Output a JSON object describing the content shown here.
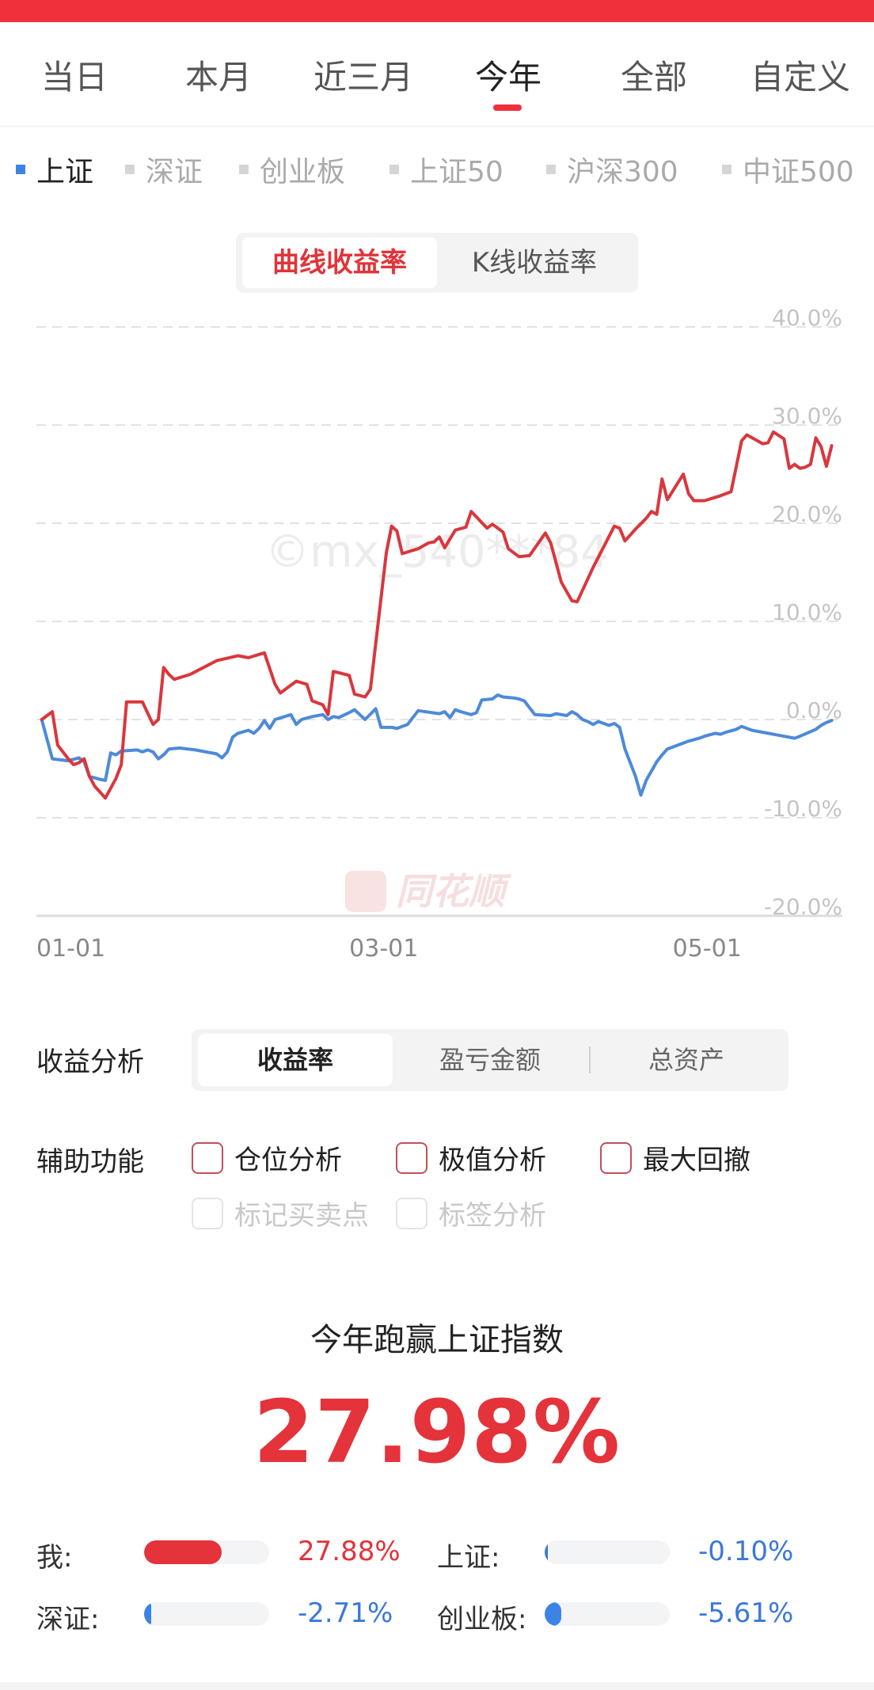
{
  "period_tabs": [
    "当日",
    "本月",
    "近三月",
    "今年",
    "全部",
    "自定义"
  ],
  "active_period": 3,
  "index_tabs": [
    "上证",
    "深证",
    "创业板",
    "上证50",
    "沪深300",
    "中证500"
  ],
  "active_index": 0,
  "chart_toggle": {
    "options": [
      "曲线收益率",
      "K线收益率"
    ],
    "active": 0
  },
  "chart_data": {
    "type": "line",
    "y_ticks": [
      "40.0%",
      "30.0%",
      "20.0%",
      "10.0%",
      "0.0%",
      "-10.0%",
      "-20.0%"
    ],
    "ylim": [
      -20,
      40
    ],
    "x_ticks": [
      {
        "label": "01-01",
        "day": 0
      },
      {
        "label": "03-01",
        "day": 59
      },
      {
        "label": "05-01",
        "day": 120
      }
    ],
    "xlim": [
      0,
      152
    ],
    "grid": true,
    "watermark": "©mx_540***84",
    "brand": "同花顺",
    "colors": {
      "mine": "#d9373d",
      "index": "#4d8ad9"
    },
    "series": [
      {
        "values": [
          [
            1,
            0
          ],
          [
            3,
            0.8
          ],
          [
            4,
            -2.6
          ],
          [
            6,
            -4
          ],
          [
            7,
            -4.6
          ],
          [
            8,
            -4.4
          ],
          [
            9,
            -4
          ],
          [
            10,
            -5.8
          ],
          [
            11,
            -6.8
          ],
          [
            13,
            -8
          ],
          [
            15,
            -6
          ],
          [
            16,
            -4.6
          ],
          [
            17,
            1.8
          ],
          [
            20,
            1.8
          ],
          [
            22,
            -0.5
          ],
          [
            23,
            0
          ],
          [
            24,
            5.3
          ],
          [
            25,
            4.6
          ],
          [
            26,
            4.1
          ],
          [
            29,
            4.6
          ],
          [
            34,
            6
          ],
          [
            38,
            6.5
          ],
          [
            40,
            6.3
          ],
          [
            43,
            6.8
          ],
          [
            45,
            3.6
          ],
          [
            46,
            2.7
          ],
          [
            49,
            3.9
          ],
          [
            51,
            3.6
          ],
          [
            52,
            1.9
          ],
          [
            54,
            1.5
          ],
          [
            55,
            0.5
          ],
          [
            56,
            4.9
          ],
          [
            59,
            4.5
          ],
          [
            60,
            2.6
          ],
          [
            62,
            2.3
          ],
          [
            63,
            3.1
          ],
          [
            66,
            17
          ],
          [
            67,
            19.7
          ],
          [
            68,
            19.2
          ],
          [
            69,
            16.9
          ],
          [
            72,
            17.4
          ],
          [
            74,
            18
          ],
          [
            75,
            18.1
          ],
          [
            76,
            18.6
          ],
          [
            77,
            17.5
          ],
          [
            79,
            19.3
          ],
          [
            81,
            19.6
          ],
          [
            82,
            21.2
          ],
          [
            85,
            19.5
          ],
          [
            86,
            19.9
          ],
          [
            88,
            19.1
          ],
          [
            89,
            17.4
          ],
          [
            91,
            16.6
          ],
          [
            93,
            16.7
          ],
          [
            96,
            19
          ],
          [
            97,
            18
          ],
          [
            99,
            14
          ],
          [
            101,
            12.1
          ],
          [
            102,
            12
          ],
          [
            105,
            15.5
          ],
          [
            109,
            19.7
          ],
          [
            110,
            19.5
          ],
          [
            111,
            18.2
          ],
          [
            113,
            19.4
          ],
          [
            115,
            20.5
          ],
          [
            116,
            21.2
          ],
          [
            117,
            20.9
          ],
          [
            118,
            24.5
          ],
          [
            119,
            22.4
          ],
          [
            122,
            25
          ],
          [
            123,
            23
          ],
          [
            124,
            22.3
          ],
          [
            126,
            22.3
          ],
          [
            129,
            22.8
          ],
          [
            131,
            23.2
          ],
          [
            133,
            28.4
          ],
          [
            134,
            29
          ],
          [
            137,
            28.1
          ],
          [
            138,
            28.2
          ],
          [
            139,
            29.3
          ],
          [
            141,
            28.6
          ],
          [
            142,
            25.6
          ],
          [
            143,
            26
          ],
          [
            144,
            25.6
          ],
          [
            145,
            25.7
          ],
          [
            146,
            26
          ],
          [
            147,
            28.7
          ],
          [
            148,
            27.8
          ],
          [
            149,
            25.8
          ],
          [
            150,
            27.9
          ]
        ]
      },
      {
        "values": [
          [
            1,
            0
          ],
          [
            3,
            -4
          ],
          [
            6,
            -4.2
          ],
          [
            8,
            -3.9
          ],
          [
            9,
            -4.3
          ],
          [
            10,
            -5.8
          ],
          [
            12,
            -6.1
          ],
          [
            13,
            -6.2
          ],
          [
            14,
            -3.4
          ],
          [
            15,
            -3.6
          ],
          [
            16,
            -3.2
          ],
          [
            19,
            -3.1
          ],
          [
            20,
            -3.3
          ],
          [
            21,
            -3.1
          ],
          [
            22,
            -3.3
          ],
          [
            23,
            -4
          ],
          [
            24,
            -3.6
          ],
          [
            25,
            -3
          ],
          [
            27,
            -2.9
          ],
          [
            30,
            -3.1
          ],
          [
            34,
            -3.5
          ],
          [
            35,
            -3.9
          ],
          [
            36,
            -3.3
          ],
          [
            37,
            -1.8
          ],
          [
            38,
            -1.4
          ],
          [
            40,
            -1.1
          ],
          [
            41,
            -1.4
          ],
          [
            42,
            -0.9
          ],
          [
            43,
            -0.1
          ],
          [
            44,
            -0.9
          ],
          [
            45,
            0
          ],
          [
            48,
            0.5
          ],
          [
            49,
            -0.5
          ],
          [
            50,
            0
          ],
          [
            52,
            0.3
          ],
          [
            54,
            0.5
          ],
          [
            55,
            0
          ],
          [
            56,
            0.3
          ],
          [
            57,
            0.2
          ],
          [
            59,
            0.7
          ],
          [
            60,
            1
          ],
          [
            61,
            0.5
          ],
          [
            62,
            0
          ],
          [
            64,
            1.1
          ],
          [
            65,
            -0.8
          ],
          [
            67,
            -0.8
          ],
          [
            68,
            -0.9
          ],
          [
            70,
            -0.5
          ],
          [
            72,
            0.9
          ],
          [
            76,
            0.6
          ],
          [
            77,
            0.8
          ],
          [
            78,
            0.2
          ],
          [
            79,
            1
          ],
          [
            80,
            0.8
          ],
          [
            82,
            0.5
          ],
          [
            83,
            0.7
          ],
          [
            84,
            2
          ],
          [
            86,
            2.1
          ],
          [
            87,
            2.5
          ],
          [
            88,
            2.3
          ],
          [
            90,
            2.2
          ],
          [
            91,
            2.1
          ],
          [
            92,
            1.9
          ],
          [
            94,
            0.5
          ],
          [
            97,
            0.4
          ],
          [
            98,
            0.6
          ],
          [
            99,
            0.5
          ],
          [
            100,
            0.4
          ],
          [
            101,
            0.8
          ],
          [
            102,
            0.5
          ],
          [
            103,
            0
          ],
          [
            104,
            -0.2
          ],
          [
            105,
            -0.5
          ],
          [
            106,
            -0.2
          ],
          [
            107,
            -0.4
          ],
          [
            108,
            -0.6
          ],
          [
            109,
            -0.4
          ],
          [
            110,
            -0.8
          ],
          [
            111,
            -3
          ],
          [
            113,
            -5.8
          ],
          [
            114,
            -7.7
          ],
          [
            115,
            -6.2
          ],
          [
            117,
            -4.3
          ],
          [
            118,
            -3.6
          ],
          [
            119,
            -3
          ],
          [
            121,
            -2.6
          ],
          [
            123,
            -2.2
          ],
          [
            125,
            -1.9
          ],
          [
            126,
            -1.7
          ],
          [
            128,
            -1.4
          ],
          [
            129,
            -1.5
          ],
          [
            130,
            -1.3
          ],
          [
            132,
            -1
          ],
          [
            133,
            -0.7
          ],
          [
            135,
            -1.1
          ],
          [
            137,
            -1.3
          ],
          [
            140,
            -1.6
          ],
          [
            143,
            -1.9
          ],
          [
            144,
            -1.7
          ],
          [
            147,
            -1
          ],
          [
            148,
            -0.6
          ],
          [
            149,
            -0.3
          ],
          [
            150,
            -0.1
          ]
        ]
      }
    ]
  },
  "analysis": {
    "label": "收益分析",
    "options": [
      "收益率",
      "盈亏金额",
      "总资产"
    ],
    "active": 0
  },
  "aux": {
    "label": "辅助功能",
    "options": [
      "仓位分析",
      "极值分析",
      "最大回撤"
    ],
    "disabled": [
      "标记买卖点",
      "标签分析"
    ]
  },
  "summary": {
    "title": "今年跑赢上证指数",
    "value": "27.98%"
  },
  "comparisons": [
    {
      "label": "我:",
      "value": "27.88%",
      "fraction": 0.62,
      "sign": "pos",
      "color": "#e4333a"
    },
    {
      "label": "上证:",
      "value": "-0.10%",
      "fraction": 0.01,
      "sign": "neg",
      "color": "#3b78d8"
    },
    {
      "label": "深证:",
      "value": "-2.71%",
      "fraction": 0.06,
      "sign": "neg",
      "color": "#3b84e6"
    },
    {
      "label": "创业板:",
      "value": "-5.61%",
      "fraction": 0.13,
      "sign": "neg",
      "color": "#3b84e6"
    }
  ]
}
